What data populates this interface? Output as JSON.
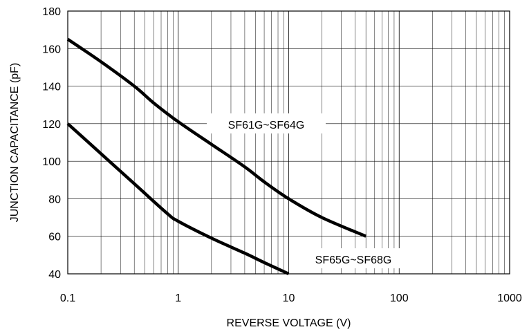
{
  "chart_data": {
    "type": "line",
    "xlabel": "REVERSE VOLTAGE (V)",
    "ylabel": "JUNCTION CAPACITANCE (pF)",
    "x_scale": "log",
    "xlim": [
      0.1,
      1000
    ],
    "ylim": [
      40,
      180
    ],
    "x_ticks": [
      "0.1",
      "1",
      "10",
      "100",
      "1000"
    ],
    "y_ticks": [
      "40",
      "60",
      "80",
      "100",
      "120",
      "140",
      "160",
      "180"
    ],
    "grid": true,
    "series": [
      {
        "name": "SF61G~SF64G",
        "x": [
          0.1,
          0.2,
          0.4,
          0.6,
          1,
          2,
          4,
          6,
          10,
          20,
          50
        ],
        "y": [
          165,
          153,
          140,
          131,
          121,
          109,
          97,
          89,
          80,
          70,
          60
        ]
      },
      {
        "name": "SF65G~SF68G",
        "x": [
          0.1,
          0.2,
          0.4,
          0.8,
          1,
          2,
          4,
          6,
          10
        ],
        "y": [
          120,
          104,
          88,
          72,
          68,
          59,
          51,
          46,
          40
        ]
      }
    ],
    "color": "#000000"
  }
}
